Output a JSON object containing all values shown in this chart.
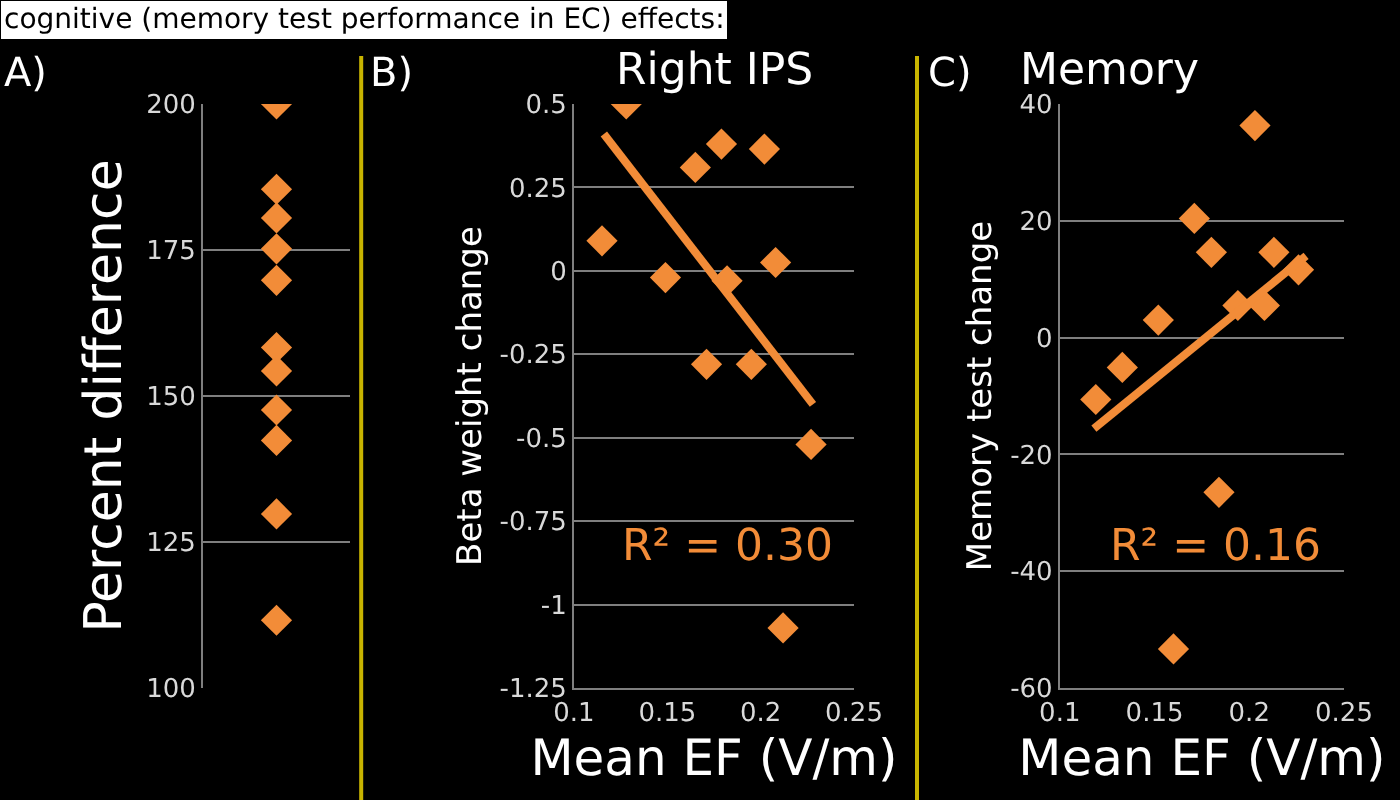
{
  "chart_data": [
    {
      "type": "scatter",
      "categories": [
        null
      ],
      "ylabel": "Percent difference",
      "ylim": [
        100,
        200
      ],
      "yticks": [
        100,
        125,
        150,
        175,
        200
      ],
      "grid": "y",
      "marker": "diamond",
      "tick_labels": "y",
      "annotations": [
        "cognitive (memory test performance in EC) effects:",
        "A)"
      ],
      "series": [
        {
          "color": "#f28c38",
          "values": [
            200
          ]
        },
        {
          "color": "#f28c38",
          "values": [
            185.4
          ]
        },
        {
          "color": "#f28c38",
          "values": [
            180.5
          ]
        },
        {
          "color": "#f28c38",
          "values": [
            175.2
          ]
        },
        {
          "color": "#f28c38",
          "values": [
            169.8
          ]
        },
        {
          "color": "#f28c38",
          "values": [
            158.3
          ]
        },
        {
          "color": "#f28c38",
          "values": [
            154.3
          ]
        },
        {
          "color": "#f28c38",
          "values": [
            147.6
          ]
        },
        {
          "color": "#f28c38",
          "values": [
            142.4
          ]
        },
        {
          "color": "#f28c38",
          "values": [
            129.8
          ]
        },
        {
          "color": "#f28c38",
          "values": [
            111.6
          ]
        }
      ]
    },
    {
      "type": "scatter",
      "title": "Right IPS",
      "xlabel": "Mean EF (V/m)",
      "ylabel": "Beta weight change",
      "xlim": [
        0.1,
        0.25
      ],
      "xticks": [
        0.1,
        0.15,
        0.2,
        0.25
      ],
      "ylim": [
        -1.25,
        0.5
      ],
      "yticks": [
        -1.25,
        -1,
        -0.75,
        -0.5,
        -0.25,
        0,
        0.25,
        0.5
      ],
      "grid": "y",
      "marker": "diamond",
      "annotations": [
        "B)",
        "R² = 0.30"
      ],
      "series": [
        {
          "color": "#f28c38",
          "x": [
            0.128,
            0.115,
            0.149,
            0.165,
            0.179,
            0.202,
            0.208,
            0.182,
            0.171,
            0.195,
            0.227,
            0.212
          ],
          "values": [
            0.5,
            0.09,
            -0.02,
            0.31,
            0.38,
            0.365,
            0.025,
            -0.03,
            -0.28,
            -0.28,
            -0.52,
            -1.07
          ]
        },
        {
          "type": "line",
          "marker": "none",
          "color": "#f28c38",
          "x": [
            0.116,
            0.228
          ],
          "values": [
            0.41,
            -0.4
          ]
        }
      ]
    },
    {
      "type": "scatter",
      "title": "Memory",
      "xlabel": "Mean EF (V/m)",
      "ylabel": "Memory test change",
      "xlim": [
        0.1,
        0.25
      ],
      "xticks": [
        0.1,
        0.15,
        0.2,
        0.25
      ],
      "ylim": [
        -60,
        40
      ],
      "yticks": [
        -60,
        -40,
        -20,
        0,
        20,
        40
      ],
      "grid": "y",
      "marker": "diamond",
      "annotations": [
        "C)",
        "R² = 0.16"
      ],
      "series": [
        {
          "color": "#f28c38",
          "x": [
            0.119,
            0.133,
            0.152,
            0.171,
            0.18,
            0.203,
            0.194,
            0.208,
            0.213,
            0.226,
            0.184,
            0.16
          ],
          "values": [
            -10.6,
            -5.1,
            3.0,
            20.4,
            14.6,
            36.3,
            5.5,
            5.5,
            14.6,
            11.6,
            -26.5,
            -53.3
          ]
        },
        {
          "type": "line",
          "marker": "none",
          "color": "#f28c38",
          "x": [
            0.118,
            0.23
          ],
          "values": [
            -15.6,
            14
          ]
        }
      ]
    }
  ]
}
